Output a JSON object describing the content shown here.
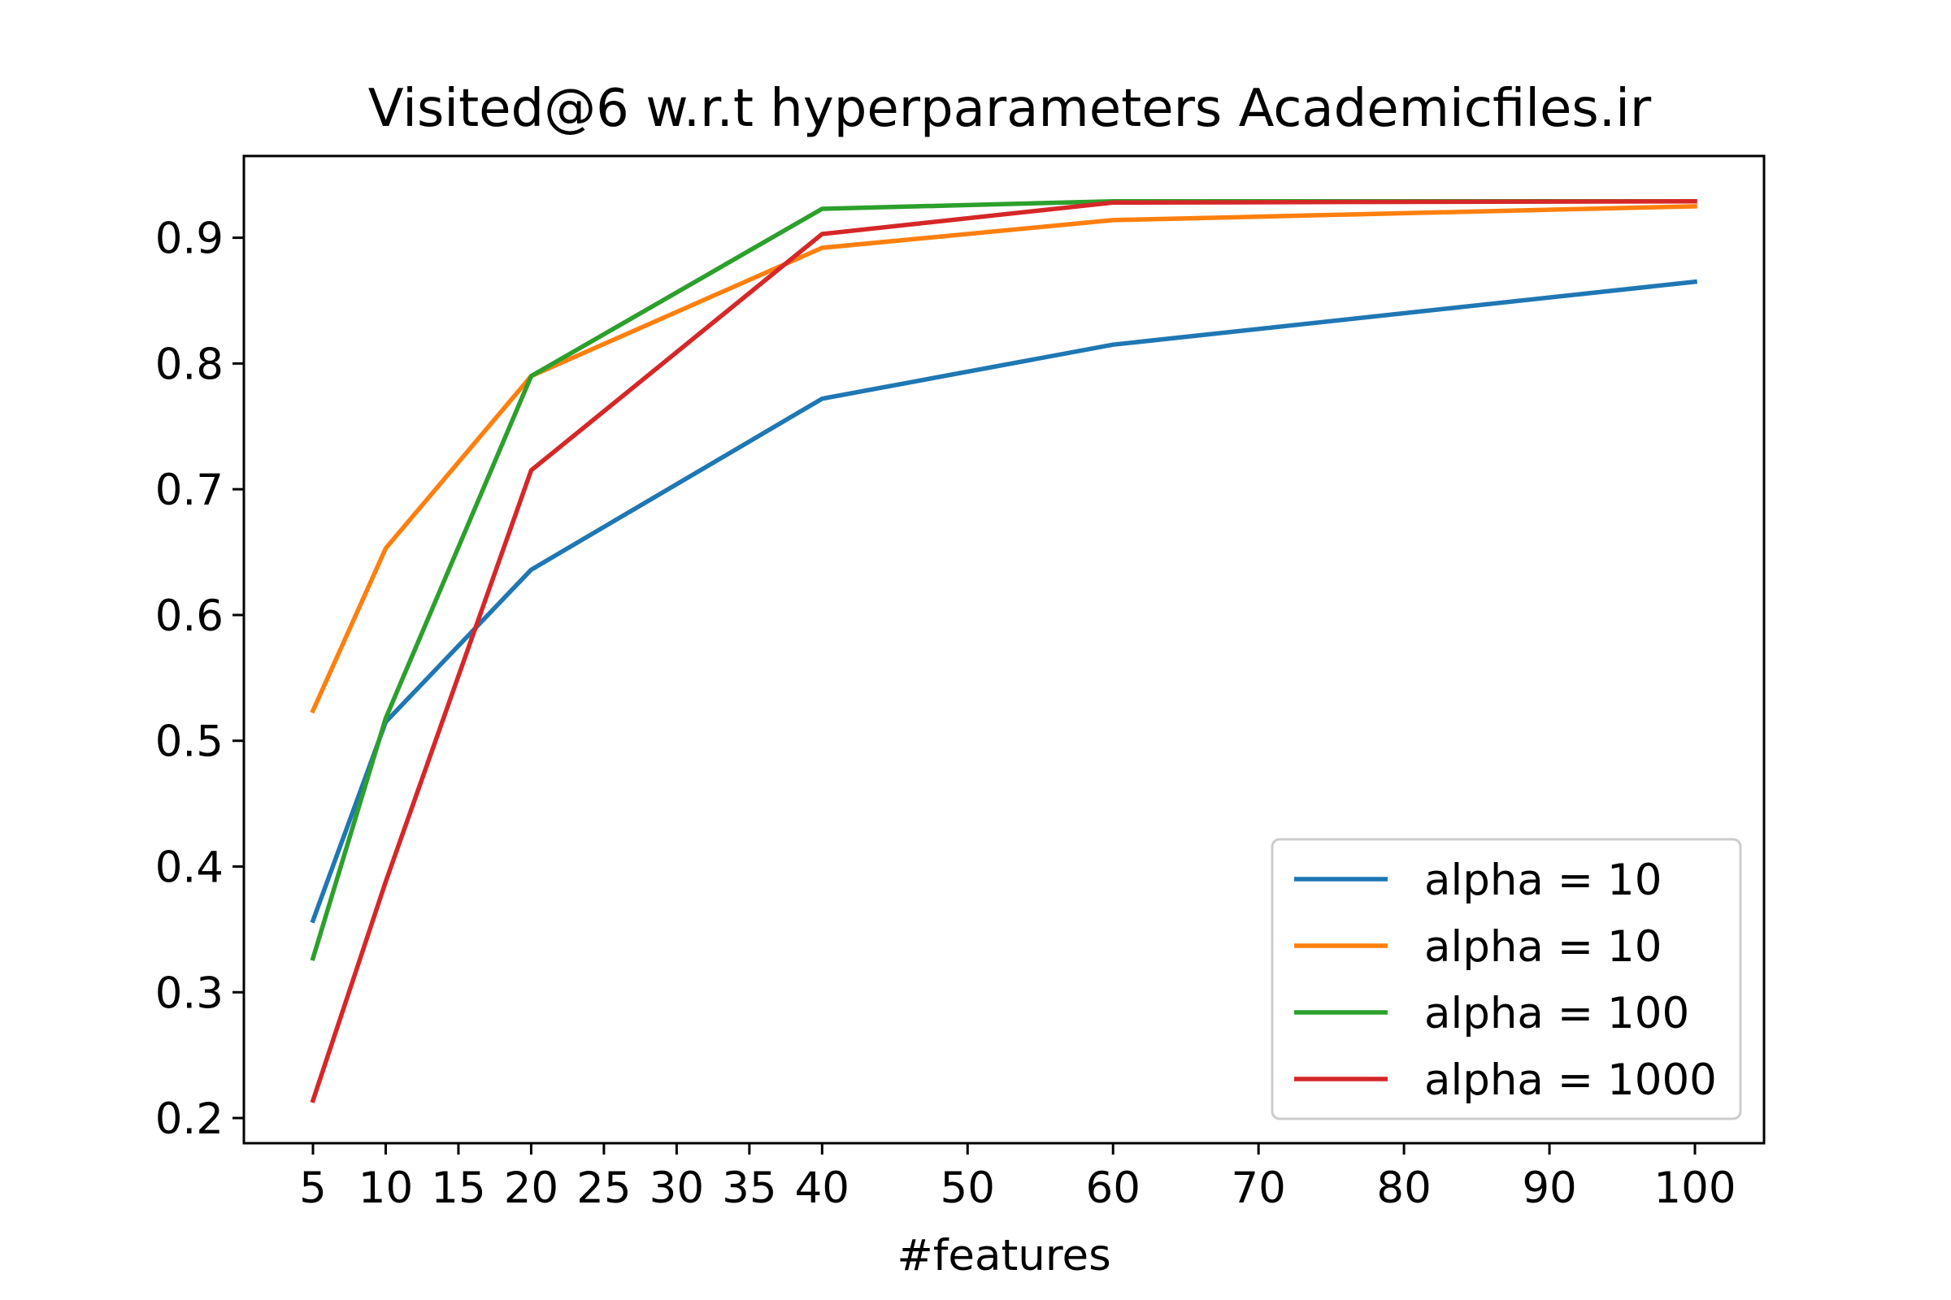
{
  "chart_data": {
    "type": "line",
    "title": "Visited@6 w.r.t hyperparameters Academicfiles.ir",
    "xlabel": "#features",
    "ylabel": "",
    "x": [
      5,
      10,
      20,
      40,
      60,
      100
    ],
    "xticks": [
      5,
      10,
      15,
      20,
      25,
      30,
      35,
      40,
      50,
      60,
      70,
      80,
      90,
      100
    ],
    "xlim": [
      0.25,
      104.75
    ],
    "yticks": [
      0.2,
      0.3,
      0.4,
      0.5,
      0.6,
      0.7,
      0.8,
      0.9
    ],
    "ylim": [
      0.18,
      0.965
    ],
    "legend_position": "lower right",
    "grid": false,
    "series": [
      {
        "name": "alpha = 10",
        "color": "#1f77b4",
        "values": [
          0.357,
          0.515,
          0.636,
          0.772,
          0.815,
          0.865
        ]
      },
      {
        "name": "alpha = 10",
        "color": "#ff7f0e",
        "values": [
          0.524,
          0.653,
          0.79,
          0.892,
          0.914,
          0.925
        ]
      },
      {
        "name": "alpha = 100",
        "color": "#2ca02c",
        "values": [
          0.327,
          0.518,
          0.79,
          0.923,
          0.929,
          0.929
        ]
      },
      {
        "name": "alpha = 1000",
        "color": "#d62728",
        "values": [
          0.214,
          0.388,
          0.715,
          0.903,
          0.928,
          0.929
        ]
      }
    ]
  }
}
